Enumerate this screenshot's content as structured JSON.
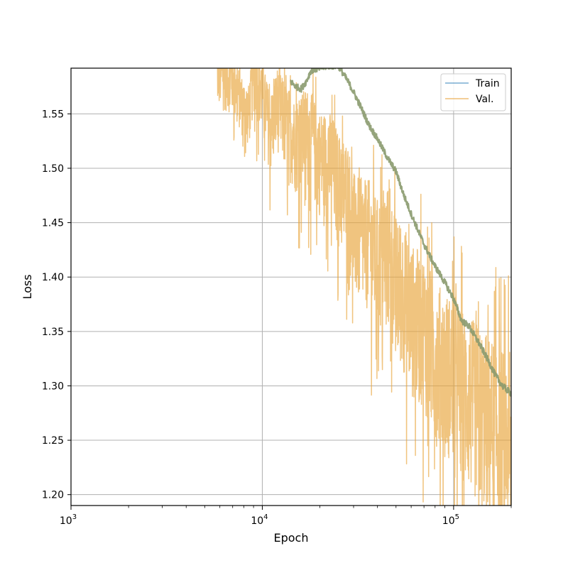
{
  "chart_data": {
    "type": "line",
    "xlabel": "Epoch",
    "ylabel": "Loss",
    "x_scale": "log",
    "xlim": [
      1000,
      200000
    ],
    "ylim": [
      1.19,
      1.592
    ],
    "x_ticks": [
      {
        "value": 1000,
        "base": "10",
        "exp": "3"
      },
      {
        "value": 10000,
        "base": "10",
        "exp": "4"
      },
      {
        "value": 100000,
        "base": "10",
        "exp": "5"
      }
    ],
    "y_ticks": [
      {
        "value": 1.2,
        "label": "1.20"
      },
      {
        "value": 1.25,
        "label": "1.25"
      },
      {
        "value": 1.3,
        "label": "1.30"
      },
      {
        "value": 1.35,
        "label": "1.35"
      },
      {
        "value": 1.4,
        "label": "1.40"
      },
      {
        "value": 1.45,
        "label": "1.45"
      },
      {
        "value": 1.5,
        "label": "1.50"
      },
      {
        "value": 1.55,
        "label": "1.55"
      }
    ],
    "grid": true,
    "legend_position": "top-right",
    "colors": {
      "train": "#1f77b4",
      "val": "#e8a43a",
      "overlap": "#8a9a6e"
    },
    "series": [
      {
        "name": "Train",
        "key": "train",
        "x": [
          14000,
          15000,
          16000,
          17000,
          18000,
          20000,
          22000,
          25000,
          28000,
          30000,
          33000,
          36000,
          40000,
          45000,
          50000,
          55000,
          60000,
          70000,
          80000,
          90000,
          100000,
          110000,
          120000,
          135000,
          150000,
          165000,
          180000,
          200000
        ],
        "y": [
          1.58,
          1.575,
          1.573,
          1.58,
          1.59,
          1.592,
          1.594,
          1.594,
          1.58,
          1.57,
          1.555,
          1.54,
          1.527,
          1.51,
          1.497,
          1.475,
          1.458,
          1.43,
          1.41,
          1.395,
          1.38,
          1.36,
          1.355,
          1.34,
          1.325,
          1.31,
          1.3,
          1.293
        ]
      },
      {
        "name": "Val.",
        "key": "val",
        "x": [
          5800,
          7000,
          8000,
          8500,
          9000,
          10000,
          11000,
          12000,
          13000,
          15000,
          17000,
          20000,
          23000,
          25000,
          28000,
          30000,
          33000,
          36000,
          40000,
          45000,
          50000,
          55000,
          60000,
          70000,
          80000,
          90000,
          100000,
          110000,
          120000,
          135000,
          150000,
          170000,
          190000,
          200000
        ],
        "y": [
          1.59,
          1.585,
          1.56,
          1.555,
          1.59,
          1.575,
          1.54,
          1.565,
          1.55,
          1.53,
          1.54,
          1.515,
          1.51,
          1.49,
          1.48,
          1.45,
          1.44,
          1.44,
          1.42,
          1.43,
          1.4,
          1.39,
          1.37,
          1.36,
          1.33,
          1.32,
          1.31,
          1.3,
          1.29,
          1.28,
          1.27,
          1.26,
          1.25,
          1.24
        ]
      }
    ],
    "noise": {
      "val_spread_upper": [
        0.03,
        0.03,
        0.04,
        0.05,
        0.06,
        0.07,
        0.08,
        0.09,
        0.1,
        0.11,
        0.12
      ],
      "val_spread_lower": [
        0.05,
        0.05,
        0.07,
        0.08,
        0.09,
        0.1,
        0.11,
        0.12,
        0.12,
        0.13,
        0.13
      ]
    }
  }
}
